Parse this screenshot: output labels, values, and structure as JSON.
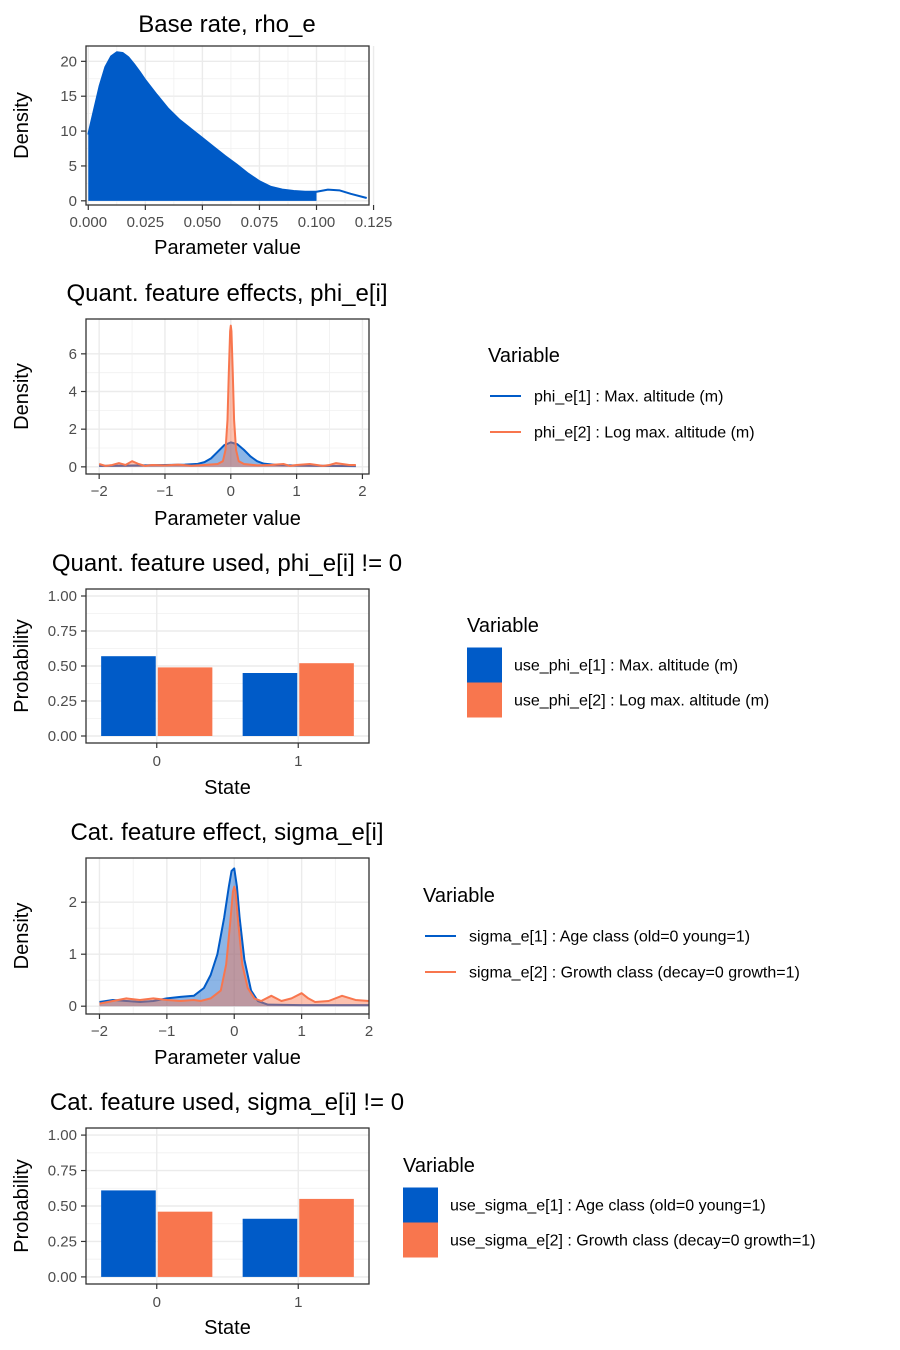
{
  "chart_data": [
    {
      "type": "area",
      "title": "Base rate, rho_e",
      "xlabel": "Parameter value",
      "ylabel": "Density",
      "xlim": [
        -0.001,
        0.123
      ],
      "ylim": [
        -0.6,
        22.2
      ],
      "xticks": [
        0.0,
        0.025,
        0.05,
        0.075,
        0.1,
        0.125
      ],
      "xticklabels": [
        "0.000",
        "0.025",
        "0.050",
        "0.075",
        "0.100",
        "0.125"
      ],
      "yticks": [
        0,
        5,
        10,
        15,
        20
      ],
      "yticklabels": [
        "0",
        "5",
        "10",
        "15",
        "20"
      ],
      "legend": null,
      "series": [
        {
          "name": "rho_e",
          "color": "#005BC8",
          "fill_end": 0.1,
          "x": [
            0.0,
            0.0025,
            0.005,
            0.0075,
            0.01,
            0.0125,
            0.015,
            0.0175,
            0.02,
            0.0225,
            0.025,
            0.03,
            0.035,
            0.04,
            0.045,
            0.05,
            0.055,
            0.06,
            0.065,
            0.07,
            0.075,
            0.08,
            0.085,
            0.09,
            0.095,
            0.1,
            0.105,
            0.11,
            0.115,
            0.122
          ],
          "y": [
            9.5,
            13.0,
            16.5,
            19.2,
            20.7,
            21.3,
            21.2,
            20.6,
            19.6,
            18.5,
            17.3,
            15.2,
            13.2,
            11.6,
            10.3,
            9.0,
            7.7,
            6.4,
            5.2,
            3.9,
            2.8,
            2.0,
            1.6,
            1.4,
            1.3,
            1.3,
            1.6,
            1.5,
            1.0,
            0.4
          ]
        }
      ]
    },
    {
      "type": "area",
      "title": "Quant. feature effects, phi_e[i]",
      "xlabel": "Parameter value",
      "ylabel": "Density",
      "xlim": [
        -2.2,
        2.1
      ],
      "ylim": [
        -0.38,
        7.85
      ],
      "xticks": [
        -2,
        -1,
        0,
        1,
        2
      ],
      "xticklabels": [
        "−2",
        "−1",
        "0",
        "1",
        "2"
      ],
      "yticks": [
        0,
        2,
        4,
        6
      ],
      "yticklabels": [
        "0",
        "2",
        "4",
        "6"
      ],
      "legend": {
        "title": "Variable",
        "kind": "line",
        "entries": [
          {
            "label": "phi_e[1] : Max. altitude (m)",
            "color": "#005BC8"
          },
          {
            "label": "phi_e[2] : Log max. altitude (m)",
            "color": "#F8764E"
          }
        ]
      },
      "series": [
        {
          "name": "phi_e[1] : Max. altitude (m)",
          "color": "#005BC8",
          "x": [
            -2.0,
            -1.5,
            -1.0,
            -0.7,
            -0.5,
            -0.4,
            -0.3,
            -0.2,
            -0.1,
            0.0,
            0.1,
            0.2,
            0.3,
            0.4,
            0.5,
            0.7,
            1.0,
            1.5,
            1.9
          ],
          "y": [
            0.05,
            0.07,
            0.1,
            0.12,
            0.16,
            0.25,
            0.45,
            0.8,
            1.15,
            1.3,
            1.2,
            0.9,
            0.55,
            0.3,
            0.17,
            0.1,
            0.07,
            0.05,
            0.04
          ]
        },
        {
          "name": "phi_e[2] : Log max. altitude (m)",
          "color": "#F8764E",
          "x": [
            -2.0,
            -1.9,
            -1.8,
            -1.7,
            -1.6,
            -1.5,
            -1.4,
            -1.3,
            -1.2,
            -1.0,
            -0.8,
            -0.6,
            -0.4,
            -0.2,
            -0.12,
            -0.08,
            -0.05,
            -0.03,
            -0.01,
            0.0,
            0.01,
            0.03,
            0.05,
            0.08,
            0.12,
            0.2,
            0.4,
            0.6,
            0.8,
            0.9,
            1.0,
            1.2,
            1.4,
            1.5,
            1.6,
            1.8,
            1.9
          ],
          "y": [
            0.15,
            0.05,
            0.1,
            0.2,
            0.1,
            0.3,
            0.15,
            0.05,
            0.1,
            0.08,
            0.12,
            0.06,
            0.1,
            0.15,
            0.3,
            0.9,
            2.5,
            5.0,
            7.2,
            7.5,
            7.2,
            5.0,
            2.5,
            0.9,
            0.3,
            0.15,
            0.08,
            0.1,
            0.15,
            0.05,
            0.1,
            0.15,
            0.05,
            0.1,
            0.2,
            0.1,
            0.1
          ]
        }
      ]
    },
    {
      "type": "bar",
      "title": "Quant. feature used, phi_e[i] != 0",
      "xlabel": "State",
      "ylabel": "Probability",
      "categories": [
        "0",
        "1"
      ],
      "ylim": [
        -0.05,
        1.05
      ],
      "yticks": [
        0,
        0.25,
        0.5,
        0.75,
        1.0
      ],
      "yticklabels": [
        "0.00",
        "0.25",
        "0.50",
        "0.75",
        "1.00"
      ],
      "legend": {
        "title": "Variable",
        "kind": "box",
        "entries": [
          {
            "label": "use_phi_e[1] : Max. altitude (m)",
            "color": "#005BC8"
          },
          {
            "label": "use_phi_e[2] : Log max. altitude (m)",
            "color": "#F8764E"
          }
        ]
      },
      "series": [
        {
          "name": "use_phi_e[1] : Max. altitude (m)",
          "color": "#005BC8",
          "values": [
            0.57,
            0.45
          ]
        },
        {
          "name": "use_phi_e[2] : Log max. altitude (m)",
          "color": "#F8764E",
          "values": [
            0.49,
            0.52
          ]
        }
      ]
    },
    {
      "type": "area",
      "title": "Cat. feature effect, sigma_e[i]",
      "xlabel": "Parameter value",
      "ylabel": "Density",
      "xlim": [
        -2.2,
        2.0
      ],
      "ylim": [
        -0.15,
        2.85
      ],
      "xticks": [
        -2,
        -1,
        0,
        1,
        2
      ],
      "xticklabels": [
        "−2",
        "−1",
        "0",
        "1",
        "2"
      ],
      "yticks": [
        0,
        1,
        2
      ],
      "yticklabels": [
        "0",
        "1",
        "2"
      ],
      "legend": {
        "title": "Variable",
        "kind": "line",
        "entries": [
          {
            "label": "sigma_e[1] : Age class (old=0 young=1)",
            "color": "#005BC8"
          },
          {
            "label": "sigma_e[2] : Growth class (decay=0 growth=1)",
            "color": "#F8764E"
          }
        ]
      },
      "series": [
        {
          "name": "sigma_e[1] : Age class (old=0 young=1)",
          "color": "#005BC8",
          "x": [
            -2.0,
            -1.8,
            -1.6,
            -1.4,
            -1.2,
            -1.0,
            -0.8,
            -0.6,
            -0.45,
            -0.35,
            -0.25,
            -0.15,
            -0.08,
            -0.04,
            0.0,
            0.04,
            0.08,
            0.15,
            0.25,
            0.35,
            0.5,
            1.0,
            1.5,
            2.0
          ],
          "y": [
            0.08,
            0.12,
            0.1,
            0.08,
            0.1,
            0.15,
            0.18,
            0.2,
            0.35,
            0.6,
            1.0,
            1.7,
            2.3,
            2.6,
            2.65,
            2.3,
            1.7,
            0.9,
            0.3,
            0.1,
            0.03,
            0.02,
            0.02,
            0.02
          ]
        },
        {
          "name": "sigma_e[2] : Growth class (decay=0 growth=1)",
          "color": "#F8764E",
          "x": [
            -2.0,
            -1.8,
            -1.6,
            -1.4,
            -1.2,
            -1.0,
            -0.8,
            -0.6,
            -0.5,
            -0.35,
            -0.2,
            -0.12,
            -0.06,
            -0.02,
            0.0,
            0.02,
            0.06,
            0.12,
            0.2,
            0.3,
            0.4,
            0.55,
            0.7,
            0.85,
            1.0,
            1.1,
            1.2,
            1.4,
            1.6,
            1.8,
            2.0
          ],
          "y": [
            0.05,
            0.1,
            0.15,
            0.12,
            0.15,
            0.12,
            0.1,
            0.12,
            0.1,
            0.15,
            0.3,
            0.8,
            1.6,
            2.2,
            2.3,
            2.2,
            1.6,
            0.8,
            0.35,
            0.15,
            0.1,
            0.2,
            0.1,
            0.15,
            0.25,
            0.15,
            0.08,
            0.1,
            0.2,
            0.12,
            0.1
          ]
        }
      ]
    },
    {
      "type": "bar",
      "title": "Cat. feature used, sigma_e[i] != 0",
      "xlabel": "State",
      "ylabel": "Probability",
      "categories": [
        "0",
        "1"
      ],
      "ylim": [
        -0.05,
        1.05
      ],
      "yticks": [
        0,
        0.25,
        0.5,
        0.75,
        1.0
      ],
      "yticklabels": [
        "0.00",
        "0.25",
        "0.50",
        "0.75",
        "1.00"
      ],
      "legend": {
        "title": "Variable",
        "kind": "box",
        "entries": [
          {
            "label": "use_sigma_e[1] : Age class (old=0 young=1)",
            "color": "#005BC8"
          },
          {
            "label": "use_sigma_e[2] : Growth class (decay=0 growth=1)",
            "color": "#F8764E"
          }
        ]
      },
      "series": [
        {
          "name": "use_sigma_e[1] : Age class (old=0 young=1)",
          "color": "#005BC8",
          "values": [
            0.61,
            0.41
          ]
        },
        {
          "name": "use_sigma_e[2] : Growth class (decay=0 growth=1)",
          "color": "#F8764E",
          "values": [
            0.46,
            0.55
          ]
        }
      ]
    }
  ]
}
